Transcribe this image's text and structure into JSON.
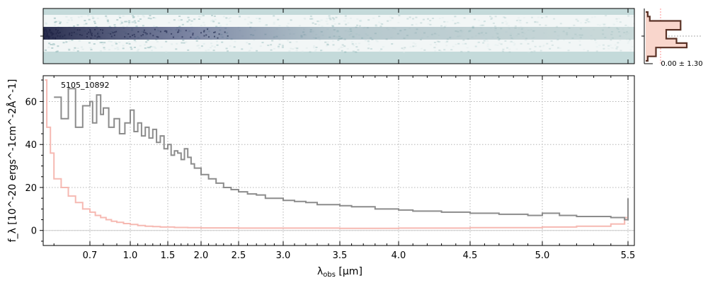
{
  "chart_data": [
    {
      "type": "heatmap",
      "panel": "2D spectrum",
      "colormap": "bone-like, teal background",
      "background_color": "#c4dada",
      "trace_color": "#2b2f52"
    },
    {
      "type": "line",
      "panel": "cross-dispersion profile",
      "annotation": "0.00 ± 1.30",
      "fill_color": "#f9d6cc",
      "line_color": "#5a3226",
      "profile": [
        0.05,
        0.1,
        0.85,
        0.85,
        0.5,
        0.5,
        0.75,
        1.0,
        0.25,
        0.25,
        0.05
      ]
    },
    {
      "type": "line",
      "panel": "1D spectrum",
      "object_label": "5105_10892",
      "xlabel_main": "λ",
      "xlabel_sub": "obs",
      "xlabel_unit": " [μm]",
      "ylabel": "f_λ [10^-20 ergs^-1cm^-2Å^-1]",
      "xscale": "arcsinh-like (stretched at short wavelengths)",
      "xlim": [
        0.57,
        5.52
      ],
      "ylim": [
        -7,
        72
      ],
      "x_ticks": [
        "0.7",
        "1.0",
        "1.5",
        "2.0",
        "2.5",
        "3.0",
        "3.5",
        "4.0",
        "4.5",
        "5.0",
        "5.5"
      ],
      "y_ticks": [
        "0",
        "20",
        "40",
        "60"
      ],
      "grid": true,
      "series": [
        {
          "role": "flux",
          "color": "#8c8c8c",
          "x": [
            0.6,
            0.62,
            0.64,
            0.66,
            0.68,
            0.7,
            0.72,
            0.75,
            0.78,
            0.8,
            0.84,
            0.88,
            0.92,
            0.96,
            1.0,
            1.05,
            1.1,
            1.15,
            1.2,
            1.25,
            1.3,
            1.35,
            1.4,
            1.45,
            1.5,
            1.55,
            1.6,
            1.65,
            1.7,
            1.75,
            1.8,
            1.85,
            1.9,
            2.0,
            2.1,
            2.2,
            2.3,
            2.4,
            2.5,
            2.6,
            2.7,
            2.8,
            2.9,
            3.0,
            3.1,
            3.2,
            3.3,
            3.4,
            3.5,
            3.6,
            3.7,
            3.8,
            3.9,
            4.0,
            4.1,
            4.2,
            4.3,
            4.4,
            4.5,
            4.6,
            4.7,
            4.8,
            4.9,
            5.0,
            5.1,
            5.2,
            5.3,
            5.4,
            5.48,
            5.5
          ],
          "y": [
            62,
            52,
            66,
            48,
            58,
            60,
            50,
            63,
            54,
            57,
            48,
            52,
            45,
            50,
            56,
            46,
            50,
            44,
            48,
            43,
            47,
            41,
            44,
            38,
            40,
            35,
            37,
            36,
            33,
            38,
            34,
            31,
            29,
            26,
            24,
            22,
            20,
            19,
            18,
            17,
            16.5,
            15,
            15,
            14,
            13.5,
            13,
            12,
            12,
            11.5,
            11,
            11,
            10,
            10,
            9.5,
            9,
            9,
            8.5,
            8.5,
            8,
            8,
            7.5,
            7.5,
            7,
            8,
            7,
            6.5,
            6.5,
            6,
            5,
            15
          ]
        },
        {
          "role": "uncertainty",
          "color": "#f6b9b2",
          "x": [
            0.575,
            0.58,
            0.59,
            0.6,
            0.62,
            0.64,
            0.66,
            0.68,
            0.7,
            0.74,
            0.78,
            0.82,
            0.86,
            0.9,
            0.95,
            1.0,
            1.1,
            1.2,
            1.3,
            1.4,
            1.6,
            1.8,
            2.0,
            2.5,
            3.0,
            3.5,
            4.0,
            4.5,
            5.0,
            5.2,
            5.4,
            5.48,
            5.5
          ],
          "y": [
            70,
            48,
            36,
            24,
            20,
            16,
            13,
            10,
            8.5,
            7,
            6,
            5,
            4.3,
            3.8,
            3.2,
            2.8,
            2.3,
            2.0,
            1.8,
            1.6,
            1.4,
            1.3,
            1.2,
            1.1,
            1.1,
            1.0,
            1.1,
            1.3,
            1.6,
            2.0,
            3.0,
            6.0,
            8.0
          ]
        }
      ]
    }
  ]
}
